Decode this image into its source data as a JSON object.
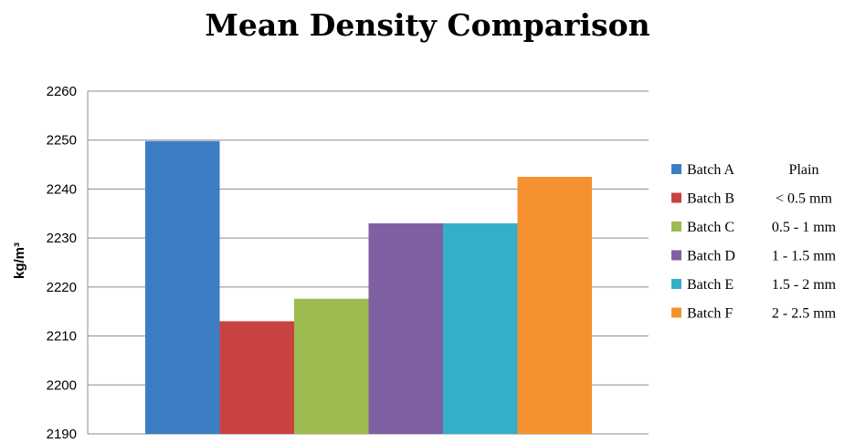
{
  "chart_data": {
    "type": "bar",
    "title": "Mean Density Comparison",
    "xlabel": "",
    "ylabel": "kg/m³",
    "ylim": [
      2190,
      2260
    ],
    "yticks": [
      2190,
      2200,
      2210,
      2220,
      2230,
      2240,
      2250,
      2260
    ],
    "grid": true,
    "legend_position": "right",
    "series": [
      {
        "name": "Batch A",
        "desc": "Plain",
        "value": 2249.8,
        "color": "#3d7dc4"
      },
      {
        "name": "Batch B",
        "desc": "< 0.5 mm",
        "value": 2213.0,
        "color": "#c84240"
      },
      {
        "name": "Batch C",
        "desc": "0.5 - 1 mm",
        "value": 2217.6,
        "color": "#9dbb50"
      },
      {
        "name": "Batch D",
        "desc": "1 - 1.5 mm",
        "value": 2233.0,
        "color": "#7f60a3"
      },
      {
        "name": "Batch E",
        "desc": "1.5 - 2 mm",
        "value": 2233.0,
        "color": "#35aec8"
      },
      {
        "name": "Batch F",
        "desc": "2 - 2.5 mm",
        "value": 2242.5,
        "color": "#f5922f"
      }
    ]
  }
}
